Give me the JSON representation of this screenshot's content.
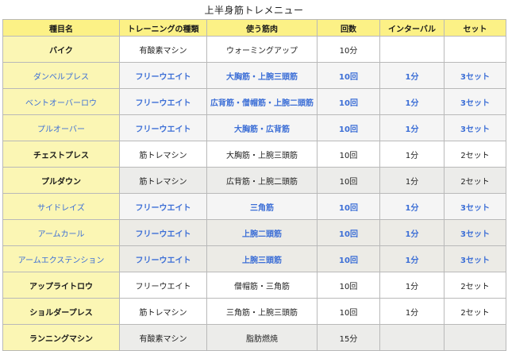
{
  "title": "上半身筋トレメニュー",
  "columns": [
    "種目名",
    "トレーニングの種類",
    "使う筋肉",
    "回数",
    "インターバル",
    "セット"
  ],
  "rows": [
    {
      "name": "バイク",
      "type": "有酸素マシン",
      "muscle": "ウォーミングアップ",
      "reps": "10分",
      "interval": "",
      "sets": "",
      "highlight": false,
      "shade": "plain"
    },
    {
      "name": "ダンベルプレス",
      "type": "フリーウエイト",
      "muscle": "大胸筋・上腕三頭筋",
      "reps": "10回",
      "interval": "1分",
      "sets": "3セット",
      "highlight": true,
      "shade": "blue"
    },
    {
      "name": "ベントオーバーロウ",
      "type": "フリーウエイト",
      "muscle": "広背筋・僧帽筋・上腕二頭筋",
      "reps": "10回",
      "interval": "1分",
      "sets": "3セット",
      "highlight": true,
      "shade": "blue"
    },
    {
      "name": "プルオーバー",
      "type": "フリーウエイト",
      "muscle": "大胸筋・広背筋",
      "reps": "10回",
      "interval": "1分",
      "sets": "3セット",
      "highlight": true,
      "shade": "blue"
    },
    {
      "name": "チェストプレス",
      "type": "筋トレマシン",
      "muscle": "大胸筋・上腕三頭筋",
      "reps": "10回",
      "interval": "1分",
      "sets": "2セット",
      "highlight": false,
      "shade": "plain"
    },
    {
      "name": "プルダウン",
      "type": "筋トレマシン",
      "muscle": "広背筋・上腕二頭筋",
      "reps": "10回",
      "interval": "1分",
      "sets": "2セット",
      "highlight": false,
      "shade": "gray"
    },
    {
      "name": "サイドレイズ",
      "type": "フリーウエイト",
      "muscle": "三角筋",
      "reps": "10回",
      "interval": "1分",
      "sets": "3セット",
      "highlight": true,
      "shade": "blue"
    },
    {
      "name": "アームカール",
      "type": "フリーウエイト",
      "muscle": "上腕二頭筋",
      "reps": "10回",
      "interval": "1分",
      "sets": "3セット",
      "highlight": true,
      "shade": "blue"
    },
    {
      "name": "アームエクステンション",
      "type": "フリーウエイト",
      "muscle": "上腕三頭筋",
      "reps": "10回",
      "interval": "1分",
      "sets": "3セット",
      "highlight": true,
      "shade": "blue"
    },
    {
      "name": "アップライトロウ",
      "type": "フリーウエイト",
      "muscle": "僧帽筋・三角筋",
      "reps": "10回",
      "interval": "1分",
      "sets": "2セット",
      "highlight": false,
      "shade": "plain"
    },
    {
      "name": "ショルダープレス",
      "type": "筋トレマシン",
      "muscle": "三角筋・上腕三頭筋",
      "reps": "10回",
      "interval": "1分",
      "sets": "2セット",
      "highlight": false,
      "shade": "plain"
    },
    {
      "name": "ランニングマシン",
      "type": "有酸素マシン",
      "muscle": "脂肪燃焼",
      "reps": "15分",
      "interval": "",
      "sets": "",
      "highlight": false,
      "shade": "gray"
    }
  ],
  "colors": {
    "header_bg": "#fcf186",
    "name_bg": "#fbf6b4",
    "highlight_text": "#3d6fd6",
    "gray_row": "#ececea"
  }
}
